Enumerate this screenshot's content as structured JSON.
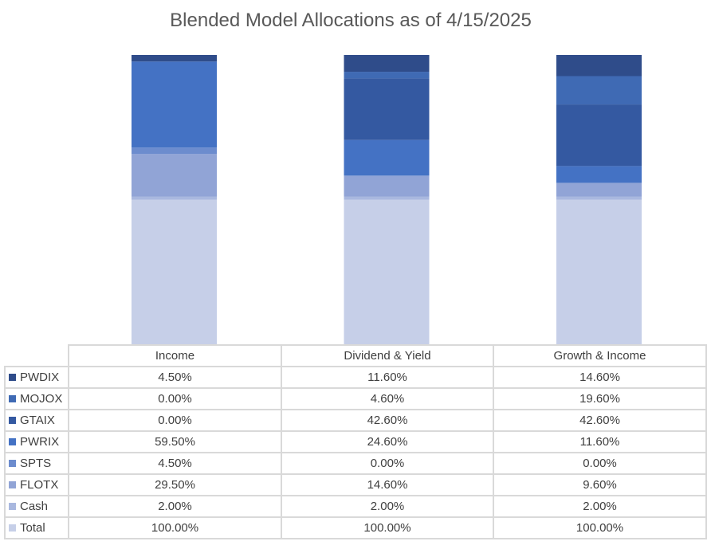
{
  "chart_data": {
    "type": "bar",
    "stacked": true,
    "title": "Blended Model Allocations as of 4/15/2025",
    "categories": [
      "Income",
      "Dividend & Yield",
      "Growth & Income"
    ],
    "stack_order_bottom_to_top": [
      "Total",
      "Cash",
      "FLOTX",
      "SPTS",
      "PWRIX",
      "GTAIX",
      "MOJOX",
      "PWDIX"
    ],
    "series": [
      {
        "name": "PWDIX",
        "color": "#2f4c8a",
        "values": [
          4.5,
          11.6,
          14.6
        ],
        "labels": [
          "4.50%",
          "11.60%",
          "14.60%"
        ]
      },
      {
        "name": "MOJOX",
        "color": "#3f6ab4",
        "values": [
          0.0,
          4.6,
          19.6
        ],
        "labels": [
          "0.00%",
          "4.60%",
          "19.60%"
        ]
      },
      {
        "name": "GTAIX",
        "color": "#3459a1",
        "values": [
          0.0,
          42.6,
          42.6
        ],
        "labels": [
          "0.00%",
          "42.60%",
          "42.60%"
        ]
      },
      {
        "name": "PWRIX",
        "color": "#4472c4",
        "values": [
          59.5,
          24.6,
          11.6
        ],
        "labels": [
          "59.50%",
          "24.60%",
          "11.60%"
        ]
      },
      {
        "name": "SPTS",
        "color": "#6c8cce",
        "values": [
          4.5,
          0.0,
          0.0
        ],
        "labels": [
          "4.50%",
          "0.00%",
          "0.00%"
        ]
      },
      {
        "name": "FLOTX",
        "color": "#91a4d6",
        "values": [
          29.5,
          14.6,
          9.6
        ],
        "labels": [
          "29.50%",
          "14.60%",
          "9.60%"
        ]
      },
      {
        "name": "Cash",
        "color": "#a9b8df",
        "values": [
          2.0,
          2.0,
          2.0
        ],
        "labels": [
          "2.00%",
          "2.00%",
          "2.00%"
        ]
      },
      {
        "name": "Total",
        "color": "#c6cfe8",
        "values": [
          100.0,
          100.0,
          100.0
        ],
        "labels": [
          "100.00%",
          "100.00%",
          "100.00%"
        ]
      }
    ],
    "legend_placement": "data-table",
    "grid": false,
    "axes_visible": false
  }
}
